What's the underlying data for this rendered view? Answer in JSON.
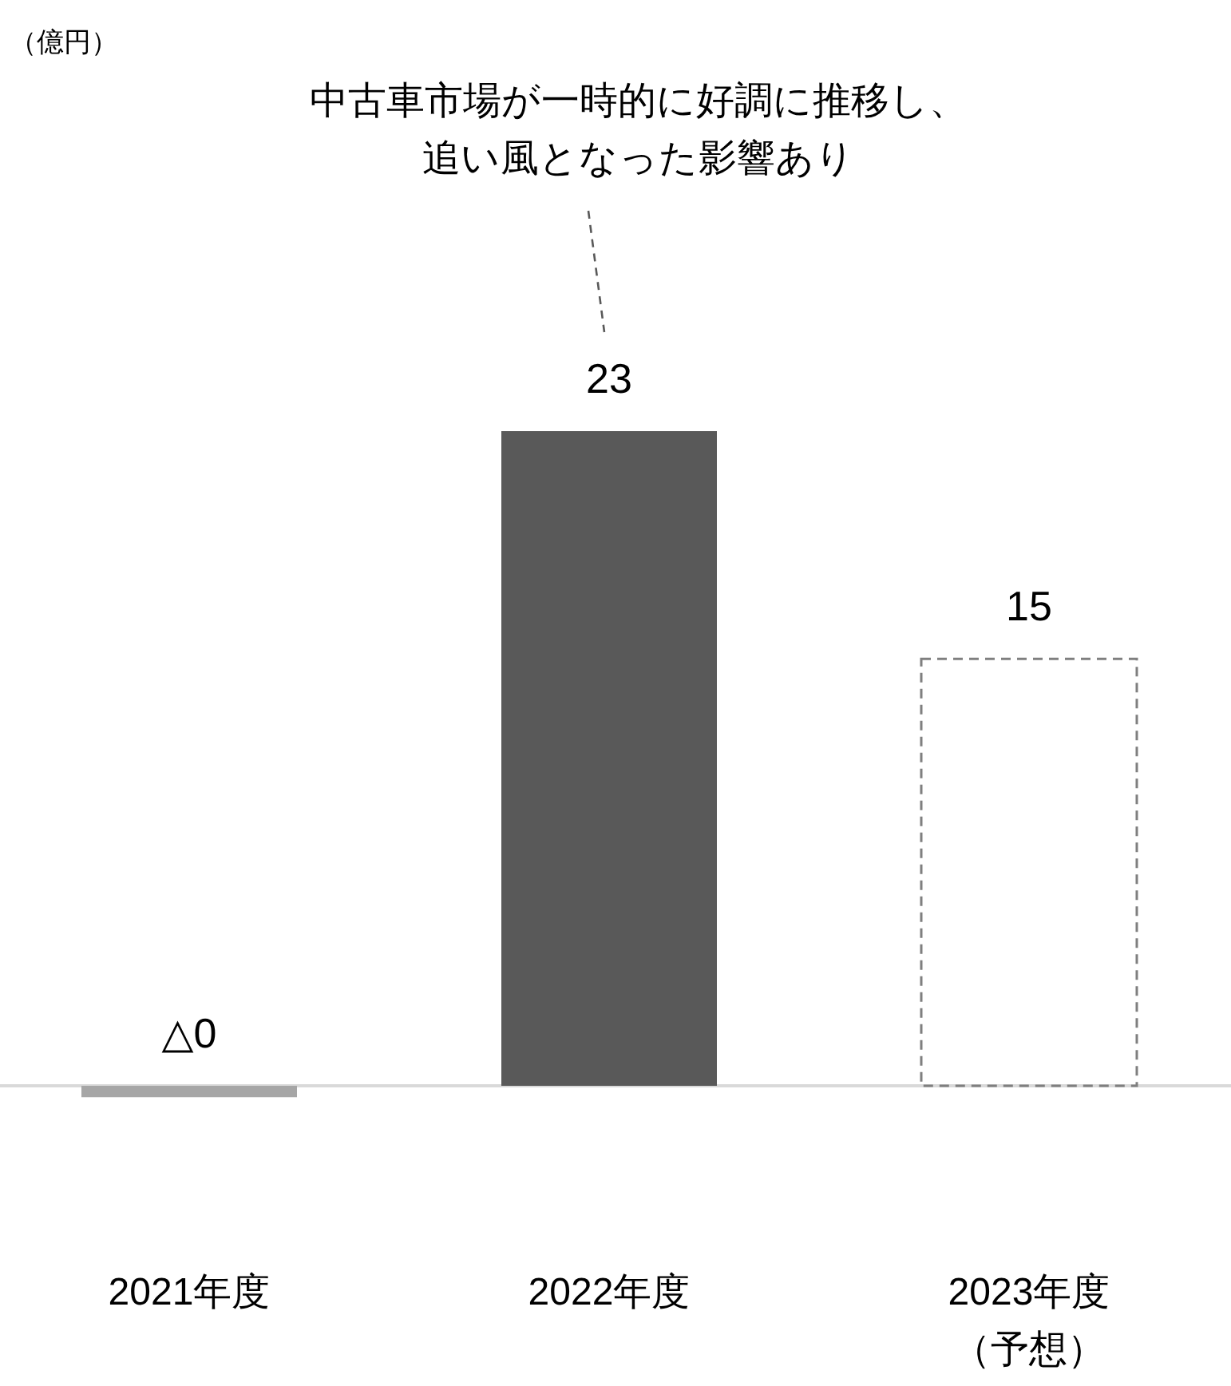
{
  "chart_data": {
    "type": "bar",
    "categories": [
      "2021年度",
      "2022年度",
      "2023年度（予想）"
    ],
    "stacked": true,
    "series": [
      {
        "colors": [
          "#a6a6a6",
          "#595959",
          null
        ],
        "values": [
          -0.4,
          23,
          null
        ],
        "value_labels": [
          "△0",
          "23",
          null
        ]
      },
      {
        "color": "#7f7f7f",
        "line_style": "dashed",
        "values": [
          null,
          null,
          15
        ],
        "value_labels": [
          null,
          null,
          "15"
        ]
      }
    ],
    "annotations": [
      "（億円）",
      "中古車市場が一時的に好調に推移し、追い風となった影響あり"
    ]
  }
}
